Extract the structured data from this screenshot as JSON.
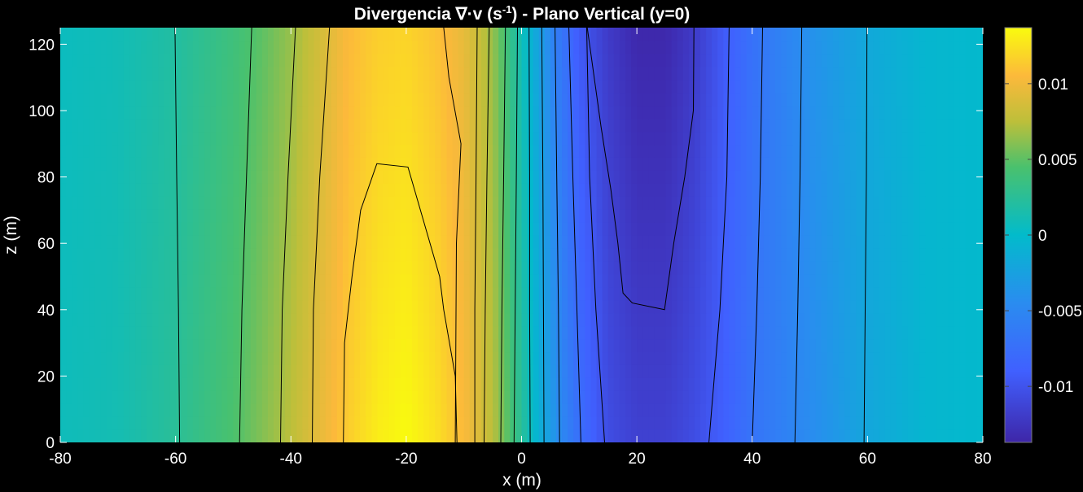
{
  "chart_data": {
    "type": "heatmap",
    "title_prefix": "Divergencia  ∇·v  (s",
    "title_sup": "-1",
    "title_suffix": ")  -  Plano  Vertical  (y=0)",
    "xlabel": "x (m)",
    "ylabel": "z (m)",
    "xlim": [
      -80,
      80
    ],
    "ylim": [
      0,
      125
    ],
    "x_ticks": [
      -80,
      -60,
      -40,
      -20,
      0,
      20,
      40,
      60,
      80
    ],
    "y_ticks": [
      0,
      20,
      40,
      60,
      80,
      100,
      120
    ],
    "colorbar": {
      "clim": [
        -0.0137,
        0.0137
      ],
      "ticks": [
        -0.01,
        -0.005,
        0,
        0.005,
        0.01
      ],
      "tick_labels": [
        "-0.01",
        "-0.005",
        "0",
        "0.005",
        "0.01"
      ]
    },
    "colormap_stops": [
      {
        "v": -0.0137,
        "color": "#3e26a8"
      },
      {
        "v": -0.009,
        "color": "#4060ff"
      },
      {
        "v": -0.0045,
        "color": "#2a8cf0"
      },
      {
        "v": 0.0,
        "color": "#02bbcb"
      },
      {
        "v": 0.0045,
        "color": "#4ac16d"
      },
      {
        "v": 0.0075,
        "color": "#bdbf3a"
      },
      {
        "v": 0.0105,
        "color": "#fcb93b"
      },
      {
        "v": 0.0137,
        "color": "#f9fb0e"
      }
    ],
    "field_profile": {
      "x": [
        -80,
        -70,
        -60,
        -50,
        -45,
        -40,
        -35,
        -30,
        -25,
        -20,
        -15,
        -10,
        -5,
        0,
        3,
        6,
        10,
        15,
        20,
        25,
        30,
        35,
        40,
        50,
        60,
        70,
        80
      ],
      "value_at_z0": [
        0.0008,
        0.0012,
        0.0025,
        0.0045,
        0.006,
        0.0075,
        0.0095,
        0.0115,
        0.013,
        0.0137,
        0.0125,
        0.0105,
        0.0075,
        0.0025,
        -0.001,
        -0.004,
        -0.0075,
        -0.0105,
        -0.0115,
        -0.0115,
        -0.0105,
        -0.009,
        -0.007,
        -0.0045,
        -0.002,
        -0.0005,
        -0.0002
      ],
      "value_at_z125": [
        0.0006,
        0.001,
        0.002,
        0.0038,
        0.005,
        0.0065,
        0.0085,
        0.0105,
        0.0115,
        0.0118,
        0.011,
        0.0095,
        0.0065,
        0.001,
        -0.0025,
        -0.006,
        -0.0095,
        -0.012,
        -0.0135,
        -0.0135,
        -0.012,
        -0.0095,
        -0.0072,
        -0.004,
        -0.0018,
        -0.0005,
        -0.0002
      ]
    },
    "contours": [
      {
        "x": [
          -59.3,
          -59.5,
          -59.8,
          -60.1
        ],
        "z": [
          0,
          40,
          80,
          125
        ]
      },
      {
        "x": [
          -48.9,
          -48.5,
          -47.7,
          -46.8
        ],
        "z": [
          0,
          40,
          80,
          125
        ]
      },
      {
        "x": [
          -41.8,
          -41.5,
          -40.5,
          -39.2
        ],
        "z": [
          0,
          40,
          80,
          125
        ]
      },
      {
        "x": [
          -36.3,
          -36.1,
          -35.0,
          -33.3
        ],
        "z": [
          0,
          40,
          80,
          125
        ]
      },
      {
        "x": [
          -30.9,
          -30.7,
          -29.4,
          -27.9,
          -25.1,
          -19.7,
          -14.2,
          -13.5,
          -11.5,
          -11.2
        ],
        "z": [
          0,
          30,
          50,
          70,
          84,
          83,
          50,
          40,
          20,
          0
        ]
      },
      {
        "x": [
          -13.5,
          -12.6,
          -10.5,
          -11.3,
          -11.5
        ],
        "z": [
          125,
          110,
          90,
          60,
          0
        ]
      },
      {
        "x": [
          -7.7,
          -7.9,
          -8.1,
          -8.1
        ],
        "z": [
          125,
          80,
          40,
          0
        ]
      },
      {
        "x": [
          -5.6,
          -6.0,
          -6.3,
          -6.5
        ],
        "z": [
          125,
          80,
          40,
          0
        ]
      },
      {
        "x": [
          -2.8,
          -3.1,
          -3.4,
          -3.6
        ],
        "z": [
          125,
          80,
          40,
          0
        ]
      },
      {
        "x": [
          -0.7,
          -0.9,
          -1.1,
          -1.3
        ],
        "z": [
          125,
          80,
          40,
          0
        ]
      },
      {
        "x": [
          1.3,
          1.4,
          1.4,
          1.5
        ],
        "z": [
          125,
          80,
          40,
          0
        ]
      },
      {
        "x": [
          3.5,
          3.7,
          3.8,
          3.9
        ],
        "z": [
          125,
          80,
          40,
          0
        ]
      },
      {
        "x": [
          5.8,
          6.1,
          6.4,
          6.6
        ],
        "z": [
          125,
          80,
          40,
          0
        ]
      },
      {
        "x": [
          8.2,
          8.9,
          9.6,
          10.3
        ],
        "z": [
          125,
          80,
          40,
          0
        ]
      },
      {
        "x": [
          11.3,
          11.8,
          12.9,
          14.4
        ],
        "z": [
          125,
          80,
          40,
          0
        ]
      },
      {
        "x": [
          11.4,
          13.8,
          15.5,
          16.7,
          17.6,
          19.2,
          24.8,
          26.4,
          28.3,
          29.8,
          29.9
        ],
        "z": [
          125,
          95,
          76,
          60,
          45,
          42,
          40,
          60,
          80,
          100,
          125
        ]
      },
      {
        "x": [
          36.0,
          35.6,
          34.4,
          32.5
        ],
        "z": [
          125,
          80,
          40,
          0
        ]
      },
      {
        "x": [
          41.8,
          41.4,
          40.8,
          40.0
        ],
        "z": [
          125,
          80,
          40,
          0
        ]
      },
      {
        "x": [
          48.6,
          48.3,
          47.9,
          47.4
        ],
        "z": [
          125,
          80,
          40,
          0
        ]
      },
      {
        "x": [
          59.9,
          59.8,
          59.6,
          59.4
        ],
        "z": [
          125,
          80,
          40,
          0
        ]
      }
    ]
  }
}
